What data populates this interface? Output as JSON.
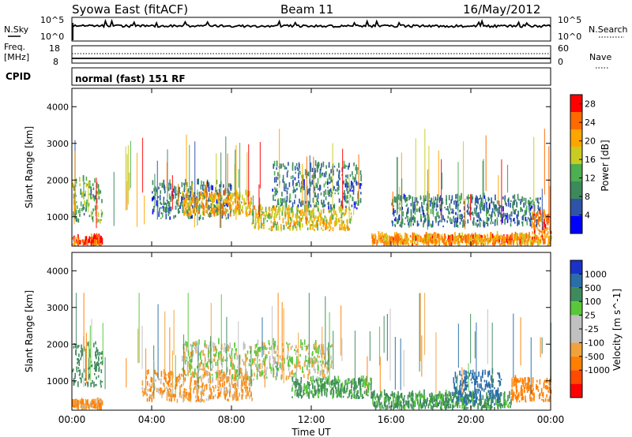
{
  "header": {
    "station": "Syowa East (fitACF)",
    "beam": "Beam 11",
    "date": "16/May/2012"
  },
  "noise_panel": {
    "left_label": "N.Sky",
    "right_label": "N.Search",
    "left_ticks": [
      "10^5",
      "10^0"
    ],
    "right_ticks": [
      "10^5",
      "10^0"
    ]
  },
  "freq_panel": {
    "left_label_line1": "Freq.",
    "left_label_line2": "[MHz]",
    "right_label": "Nave",
    "left_ticks": [
      "18",
      "8"
    ],
    "right_ticks": [
      "60",
      "0"
    ]
  },
  "cpid": {
    "label": "CPID",
    "value": "normal (fast) 151 RF"
  },
  "colors": {
    "power_scale": [
      "#0000ff",
      "#2e54a8",
      "#3c8a5a",
      "#4caf50",
      "#c8cc22",
      "#ffa500",
      "#ff6a00",
      "#ff0000"
    ],
    "velocity_scale": [
      "#1a32c8",
      "#2a6ea8",
      "#3f8a5c",
      "#58c83a",
      "#c0c0c0",
      "#c0c0c0",
      "#f0a23c",
      "#ff7f00",
      "#ff4a00",
      "#ff0000"
    ]
  },
  "chart_data": [
    {
      "type": "heatmap",
      "panel": "power",
      "ylabel": "Slant Range [km]",
      "yticks": [
        "1000",
        "2000",
        "3000",
        "4000"
      ],
      "ylim": [
        200,
        4500
      ],
      "colorbar_label": "Power [dB]",
      "colorbar_ticks": [
        "4",
        "8",
        "12",
        "16",
        "20",
        "24",
        "28"
      ],
      "colorbar_range": [
        0,
        30
      ],
      "features": [
        {
          "from_hour": 0.0,
          "to_hour": 1.5,
          "range_km_low": 200,
          "range_km_high": 400,
          "power_db": 26
        },
        {
          "from_hour": 0.0,
          "to_hour": 1.5,
          "range_km_low": 800,
          "range_km_high": 2000,
          "power_db": 12
        },
        {
          "from_hour": 4.0,
          "to_hour": 8.0,
          "range_km_low": 900,
          "range_km_high": 1900,
          "power_db": 8
        },
        {
          "from_hour": 5.5,
          "to_hour": 9.0,
          "range_km_low": 1000,
          "range_km_high": 1600,
          "power_db": 20
        },
        {
          "from_hour": 9.0,
          "to_hour": 14.0,
          "range_km_low": 600,
          "range_km_high": 1200,
          "power_db": 18
        },
        {
          "from_hour": 10.0,
          "to_hour": 14.5,
          "range_km_low": 1200,
          "range_km_high": 2400,
          "power_db": 8
        },
        {
          "from_hour": 15.0,
          "to_hour": 24.0,
          "range_km_low": 200,
          "range_km_high": 450,
          "power_db": 22
        },
        {
          "from_hour": 16.0,
          "to_hour": 23.5,
          "range_km_low": 700,
          "range_km_high": 1500,
          "power_db": 8
        },
        {
          "from_hour": 23.0,
          "to_hour": 24.0,
          "range_km_low": 500,
          "range_km_high": 1100,
          "power_db": 24
        }
      ]
    },
    {
      "type": "heatmap",
      "panel": "velocity",
      "ylabel": "Slant Range [km]",
      "xlabel": "Time UT",
      "xticks": [
        "00:00",
        "04:00",
        "08:00",
        "12:00",
        "16:00",
        "20:00",
        "00:00"
      ],
      "xlim_hours": [
        0,
        24
      ],
      "yticks": [
        "1000",
        "2000",
        "3000",
        "4000"
      ],
      "ylim": [
        200,
        4500
      ],
      "colorbar_label": "Velocity [m s^-1]",
      "colorbar_ticks": [
        "1000",
        "500",
        "100",
        "25",
        "-25",
        "-100",
        "-500",
        "-1000"
      ],
      "features": [
        {
          "from_hour": 0.0,
          "to_hour": 1.5,
          "range_km_low": 800,
          "range_km_high": 2000,
          "velocity": 200
        },
        {
          "from_hour": 0.0,
          "to_hour": 1.5,
          "range_km_low": 200,
          "range_km_high": 400,
          "velocity": -100
        },
        {
          "from_hour": 3.5,
          "to_hour": 9.0,
          "range_km_low": 400,
          "range_km_high": 1200,
          "velocity": -80
        },
        {
          "from_hour": 5.5,
          "to_hour": 13.0,
          "range_km_low": 1000,
          "range_km_high": 2000,
          "velocity": 0
        },
        {
          "from_hour": 11.0,
          "to_hour": 15.0,
          "range_km_low": 500,
          "range_km_high": 1000,
          "velocity": 120
        },
        {
          "from_hour": 15.0,
          "to_hour": 22.0,
          "range_km_low": 200,
          "range_km_high": 600,
          "velocity": 150
        },
        {
          "from_hour": 19.0,
          "to_hour": 21.5,
          "range_km_low": 300,
          "range_km_high": 1200,
          "velocity": 600
        },
        {
          "from_hour": 22.0,
          "to_hour": 24.0,
          "range_km_low": 400,
          "range_km_high": 1000,
          "velocity": -400
        }
      ]
    }
  ]
}
